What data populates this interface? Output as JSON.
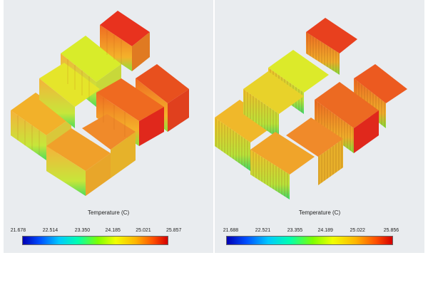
{
  "left_panel": {
    "legend_title": "Temperature (C)",
    "ticks": [
      "21.678",
      "22.514",
      "23.350",
      "24.185",
      "25.021",
      "25.857"
    ]
  },
  "right_panel": {
    "legend_title": "Temperature (C)",
    "ticks": [
      "21.688",
      "22.521",
      "23.355",
      "24.189",
      "25.022",
      "25.856"
    ]
  },
  "colors": {
    "cool_yellow": "#d6ef2a",
    "warm_yellow": "#f2d21e",
    "orange": "#f08a1e",
    "hot_red": "#e2261c",
    "base_green": "#7fe02a"
  }
}
